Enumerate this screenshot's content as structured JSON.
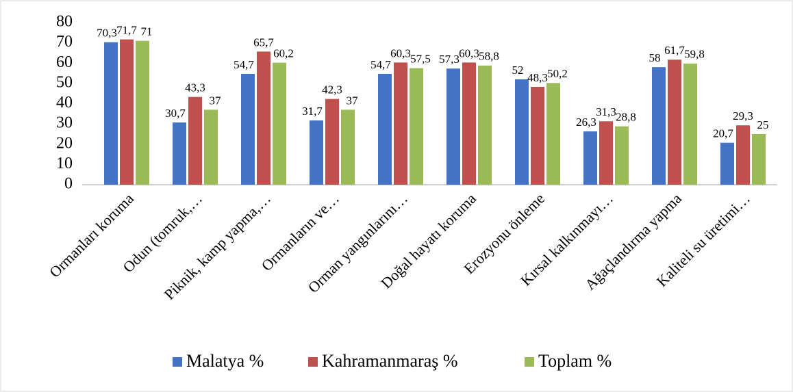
{
  "chart_data": {
    "type": "bar",
    "categories": [
      "Ormanları koruma",
      "Odun (tomruk,…",
      "Piknik, kamp yapma,…",
      "Ormanların ve…",
      "Orman yangınlarını…",
      "Doğal hayatı koruma",
      "Erozyonu önleme",
      "Kırsal kalkınmayı…",
      "Ağaçlandırma yapma",
      "Kaliteli su üretimi…"
    ],
    "series": [
      {
        "name": "Malatya %",
        "color": "#4472c4",
        "values": [
          70.3,
          30.7,
          54.7,
          31.7,
          54.7,
          57.3,
          52,
          26.3,
          58,
          20.7
        ],
        "value_labels": [
          "70,3",
          "30,7",
          "54,7",
          "31,7",
          "54,7",
          "57,3",
          "52",
          "26,3",
          "58",
          "20,7"
        ]
      },
      {
        "name": "Kahramanmaraş %",
        "color": "#c0504d",
        "values": [
          71.7,
          43.3,
          65.7,
          42.3,
          60.3,
          60.3,
          48.3,
          31.3,
          61.7,
          29.3
        ],
        "value_labels": [
          "71,7",
          "43,3",
          "65,7",
          "42,3",
          "60,3",
          "60,3",
          "48,3",
          "31,3",
          "61,7",
          "29,3"
        ]
      },
      {
        "name": "Toplam %",
        "color": "#9bbb59",
        "values": [
          71,
          37,
          60.2,
          37,
          57.5,
          58.8,
          50.2,
          28.8,
          59.8,
          25
        ],
        "value_labels": [
          "71",
          "37",
          "60,2",
          "37",
          "57,5",
          "58,8",
          "50,2",
          "28,8",
          "59,8",
          "25"
        ]
      }
    ],
    "ylim": [
      0,
      80
    ],
    "yticks": [
      0,
      10,
      20,
      30,
      40,
      50,
      60,
      70,
      80
    ],
    "grid": false,
    "legend": "bottom"
  }
}
